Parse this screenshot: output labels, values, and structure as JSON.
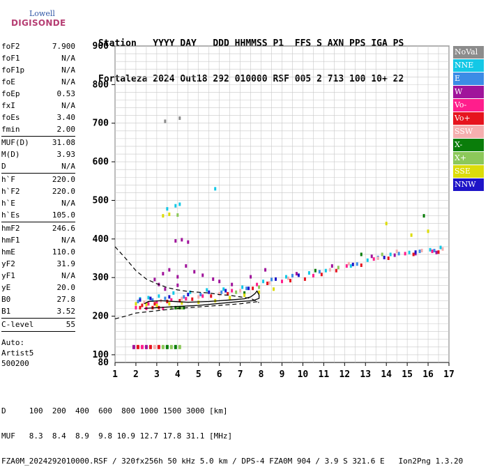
{
  "logo": {
    "top": "Lowell",
    "main": "DIGISONDE"
  },
  "header": {
    "labels": "Station   YYYY DAY   DDD HHMMSS P1  FFS S AXN PPS IGA PS",
    "values": "Fortaleza 2024 Out18 292 010000 RSF 005 2 713 100 10+ 22"
  },
  "parameters": [
    {
      "name": "foF2",
      "value": "7.900"
    },
    {
      "name": "foF1",
      "value": "N/A"
    },
    {
      "name": "foF1p",
      "value": "N/A"
    },
    {
      "name": "foE",
      "value": "N/A"
    },
    {
      "name": "foEp",
      "value": "0.53"
    },
    {
      "name": "fxI",
      "value": "N/A"
    },
    {
      "name": "foEs",
      "value": "3.40"
    },
    {
      "name": "fmin",
      "value": "2.00"
    },
    {
      "sep": true
    },
    {
      "name": "MUF(D)",
      "value": "31.08"
    },
    {
      "name": "M(D)",
      "value": "3.93"
    },
    {
      "name": "D",
      "value": "N/A"
    },
    {
      "sep": true
    },
    {
      "name": "h`F",
      "value": "220.0"
    },
    {
      "name": "h`F2",
      "value": "220.0"
    },
    {
      "name": "h`E",
      "value": "N/A"
    },
    {
      "name": "h`Es",
      "value": "105.0"
    },
    {
      "sep": true
    },
    {
      "name": "hmF2",
      "value": "246.6"
    },
    {
      "name": "hmF1",
      "value": "N/A"
    },
    {
      "name": "hmE",
      "value": "110.0"
    },
    {
      "name": "yF2",
      "value": "31.9"
    },
    {
      "name": "yF1",
      "value": "N/A"
    },
    {
      "name": "yE",
      "value": "20.0"
    },
    {
      "name": "B0",
      "value": "27.8"
    },
    {
      "name": "B1",
      "value": "3.52"
    },
    {
      "sep": true
    },
    {
      "name": "C-level",
      "value": "55"
    },
    {
      "sep": true
    }
  ],
  "auto": {
    "line1": "Auto:",
    "line2": "Artist5",
    "line3": "500200"
  },
  "legend": [
    {
      "name": "NoVal",
      "color": "#8c8c8c"
    },
    {
      "name": "NNE",
      "color": "#14c8e6"
    },
    {
      "name": "E",
      "color": "#3c8ce6"
    },
    {
      "name": "W",
      "color": "#a0149b"
    },
    {
      "name": "Vo-",
      "color": "#ff1e8c"
    },
    {
      "name": "Vo+",
      "color": "#e6141e"
    },
    {
      "name": "SSW",
      "color": "#f5afaf"
    },
    {
      "name": "X-",
      "color": "#0a7d0a"
    },
    {
      "name": "X+",
      "color": "#8cc85a"
    },
    {
      "name": "SSE",
      "color": "#dcdc0a"
    },
    {
      "name": "NNW",
      "color": "#1e14c8"
    }
  ],
  "footer": {
    "line1": "D     100  200  400  600  800 1000 1500 3000 [km]",
    "line2": "MUF   8.3  8.4  8.9  9.8 10.9 12.7 17.8 31.1 [MHz]",
    "line3": "FZA0M_2024292010000.RSF / 320fx256h 50 kHz 5.0 km / DPS-4 FZA0M 904 / 3.9 S 321.6 E   Ion2Png 1.3.20"
  },
  "chart_data": {
    "type": "scatter",
    "xlim": [
      1,
      17
    ],
    "ylim": [
      80,
      900
    ],
    "xticks": [
      1,
      2,
      3,
      4,
      5,
      6,
      7,
      8,
      9,
      10,
      11,
      12,
      13,
      14,
      15,
      16,
      17
    ],
    "yticks": [
      100,
      200,
      300,
      400,
      500,
      600,
      700,
      800,
      900
    ],
    "grid": true,
    "legend_position": "right",
    "series": [
      {
        "name": "NoVal",
        "color": "#8c8c8c",
        "points": [
          [
            3.4,
            705
          ],
          [
            4.1,
            713
          ]
        ]
      },
      {
        "name": "NNE",
        "color": "#14c8e6",
        "points": [
          [
            2.2,
            245
          ],
          [
            2.6,
            248
          ],
          [
            3.1,
            252
          ],
          [
            3.8,
            260
          ],
          [
            4.6,
            262
          ],
          [
            5.4,
            268
          ],
          [
            6.2,
            270
          ],
          [
            7.1,
            275
          ],
          [
            8.1,
            290
          ],
          [
            9.2,
            302
          ],
          [
            10.3,
            312
          ],
          [
            11.1,
            318
          ],
          [
            12.3,
            330
          ],
          [
            13.1,
            345
          ],
          [
            14.2,
            360
          ],
          [
            15.1,
            365
          ],
          [
            16.1,
            372
          ],
          [
            16.6,
            378
          ],
          [
            3.5,
            478
          ],
          [
            3.9,
            486
          ],
          [
            4.1,
            490
          ],
          [
            5.8,
            530
          ]
        ]
      },
      {
        "name": "E",
        "color": "#3c8ce6",
        "points": [
          [
            2.1,
            238
          ],
          [
            2.8,
            242
          ],
          [
            3.4,
            246
          ],
          [
            4.3,
            250
          ],
          [
            5.1,
            256
          ],
          [
            6.1,
            262
          ],
          [
            7.3,
            272
          ],
          [
            8.5,
            295
          ],
          [
            9.5,
            305
          ],
          [
            10.8,
            315
          ],
          [
            12.6,
            335
          ],
          [
            13.6,
            352
          ],
          [
            14.6,
            362
          ],
          [
            15.6,
            368
          ],
          [
            16.3,
            370
          ]
        ]
      },
      {
        "name": "W",
        "color": "#a0149b",
        "points": [
          [
            2.9,
            295
          ],
          [
            3.3,
            310
          ],
          [
            3.6,
            320
          ],
          [
            4.0,
            302
          ],
          [
            4.4,
            330
          ],
          [
            4.8,
            315
          ],
          [
            5.2,
            306
          ],
          [
            5.7,
            296
          ],
          [
            6.0,
            290
          ],
          [
            6.6,
            282
          ],
          [
            3.9,
            395
          ],
          [
            4.2,
            398
          ],
          [
            4.5,
            392
          ],
          [
            7.5,
            302
          ],
          [
            8.2,
            320
          ],
          [
            9.7,
            310
          ],
          [
            11.4,
            330
          ],
          [
            13.3,
            355
          ],
          [
            14.4,
            358
          ],
          [
            15.4,
            362
          ],
          [
            16.4,
            365
          ],
          [
            3.1,
            282
          ],
          [
            3.4,
            270
          ],
          [
            4.0,
            280
          ]
        ]
      },
      {
        "name": "Vo-",
        "color": "#ff1e8c",
        "points": [
          [
            2.0,
            222
          ],
          [
            2.6,
            232
          ],
          [
            3.0,
            235
          ],
          [
            3.7,
            242
          ],
          [
            4.4,
            245
          ],
          [
            5.2,
            252
          ],
          [
            6.6,
            266
          ],
          [
            7.8,
            282
          ],
          [
            9.0,
            290
          ],
          [
            10.5,
            305
          ],
          [
            12.1,
            330
          ],
          [
            13.4,
            348
          ],
          [
            14.9,
            362
          ],
          [
            16.2,
            368
          ],
          [
            2.5,
            220
          ],
          [
            3.3,
            220
          ]
        ]
      },
      {
        "name": "Vo+",
        "color": "#e6141e",
        "points": [
          [
            2.3,
            228
          ],
          [
            2.9,
            232
          ],
          [
            3.5,
            238
          ],
          [
            4.1,
            240
          ],
          [
            4.7,
            244
          ],
          [
            5.6,
            252
          ],
          [
            6.4,
            258
          ],
          [
            7.6,
            272
          ],
          [
            8.3,
            285
          ],
          [
            9.4,
            292
          ],
          [
            10.1,
            296
          ],
          [
            10.9,
            308
          ],
          [
            11.6,
            318
          ],
          [
            12.8,
            332
          ],
          [
            14.1,
            350
          ],
          [
            15.3,
            360
          ],
          [
            16.5,
            366
          ],
          [
            2.2,
            222
          ],
          [
            2.8,
            222
          ],
          [
            3.1,
            222
          ]
        ]
      },
      {
        "name": "SSW",
        "color": "#f5afaf",
        "points": [
          [
            2.4,
            236
          ],
          [
            3.2,
            240
          ],
          [
            4.2,
            246
          ],
          [
            5.0,
            250
          ],
          [
            6.0,
            258
          ],
          [
            7.0,
            266
          ],
          [
            8.4,
            286
          ],
          [
            9.3,
            298
          ],
          [
            11.3,
            320
          ],
          [
            12.2,
            336
          ],
          [
            13.6,
            350
          ],
          [
            14.5,
            368
          ],
          [
            15.7,
            370
          ],
          [
            16.7,
            374
          ]
        ]
      },
      {
        "name": "X-",
        "color": "#0a7d0a",
        "points": [
          [
            3.9,
            222
          ],
          [
            4.1,
            222
          ],
          [
            4.3,
            222
          ],
          [
            7.2,
            260
          ],
          [
            10.6,
            318
          ],
          [
            12.8,
            360
          ],
          [
            15.8,
            460
          ]
        ]
      },
      {
        "name": "X+",
        "color": "#8cc85a",
        "points": [
          [
            3.7,
            222
          ],
          [
            4.0,
            222
          ],
          [
            4.2,
            222
          ],
          [
            6.8,
            262
          ],
          [
            7.9,
            275
          ],
          [
            11.7,
            326
          ],
          [
            13.8,
            360
          ],
          [
            4.0,
            462
          ]
        ]
      },
      {
        "name": "SSE",
        "color": "#dcdc0a",
        "points": [
          [
            2.0,
            232
          ],
          [
            2.5,
            230
          ],
          [
            3.0,
            228
          ],
          [
            3.6,
            232
          ],
          [
            4.2,
            234
          ],
          [
            5.0,
            236
          ],
          [
            5.8,
            240
          ],
          [
            6.5,
            248
          ],
          [
            7.2,
            254
          ],
          [
            7.9,
            262
          ],
          [
            8.6,
            270
          ],
          [
            3.3,
            460
          ],
          [
            3.6,
            464
          ],
          [
            14.0,
            440
          ],
          [
            15.2,
            410
          ],
          [
            16.0,
            420
          ]
        ]
      },
      {
        "name": "NNW",
        "color": "#1e14c8",
        "points": [
          [
            2.2,
            242
          ],
          [
            2.7,
            246
          ],
          [
            3.6,
            250
          ],
          [
            4.5,
            256
          ],
          [
            5.5,
            262
          ],
          [
            6.3,
            266
          ],
          [
            7.4,
            272
          ],
          [
            8.7,
            296
          ],
          [
            9.8,
            306
          ],
          [
            12.4,
            334
          ],
          [
            13.9,
            352
          ],
          [
            15.4,
            366
          ]
        ]
      }
    ],
    "profile_dashed": [
      [
        1,
        380
      ],
      [
        1.5,
        350
      ],
      [
        2,
        318
      ],
      [
        2.5,
        296
      ],
      [
        3,
        284
      ],
      [
        3.5,
        274
      ],
      [
        4,
        268
      ],
      [
        4.5,
        264
      ],
      [
        5,
        262
      ],
      [
        5.5,
        260
      ],
      [
        6,
        256
      ],
      [
        6.5,
        254
      ],
      [
        7,
        250
      ],
      [
        7.5,
        246
      ],
      [
        7.9,
        235
      ]
    ],
    "profile_dashed_low": [
      [
        1,
        193
      ],
      [
        1.5,
        200
      ],
      [
        2,
        208
      ],
      [
        3,
        214
      ],
      [
        4,
        220
      ],
      [
        5,
        224
      ],
      [
        6,
        228
      ],
      [
        7,
        232
      ],
      [
        7.9,
        238
      ]
    ],
    "trace_solid": [
      [
        2.4,
        220
      ],
      [
        3,
        222
      ],
      [
        4,
        225
      ],
      [
        5,
        228
      ],
      [
        6,
        233
      ],
      [
        7,
        238
      ],
      [
        7.6,
        240
      ],
      [
        7.9,
        246
      ],
      [
        7.9,
        255
      ],
      [
        7.8,
        265
      ],
      [
        7.7,
        258
      ],
      [
        7.5,
        250
      ],
      [
        7.2,
        245
      ],
      [
        6.5,
        242
      ],
      [
        5.5,
        238
      ],
      [
        4.5,
        236
      ],
      [
        3.8,
        238
      ],
      [
        3.2,
        240
      ],
      [
        2.6,
        238
      ],
      [
        2.4,
        232
      ]
    ]
  }
}
